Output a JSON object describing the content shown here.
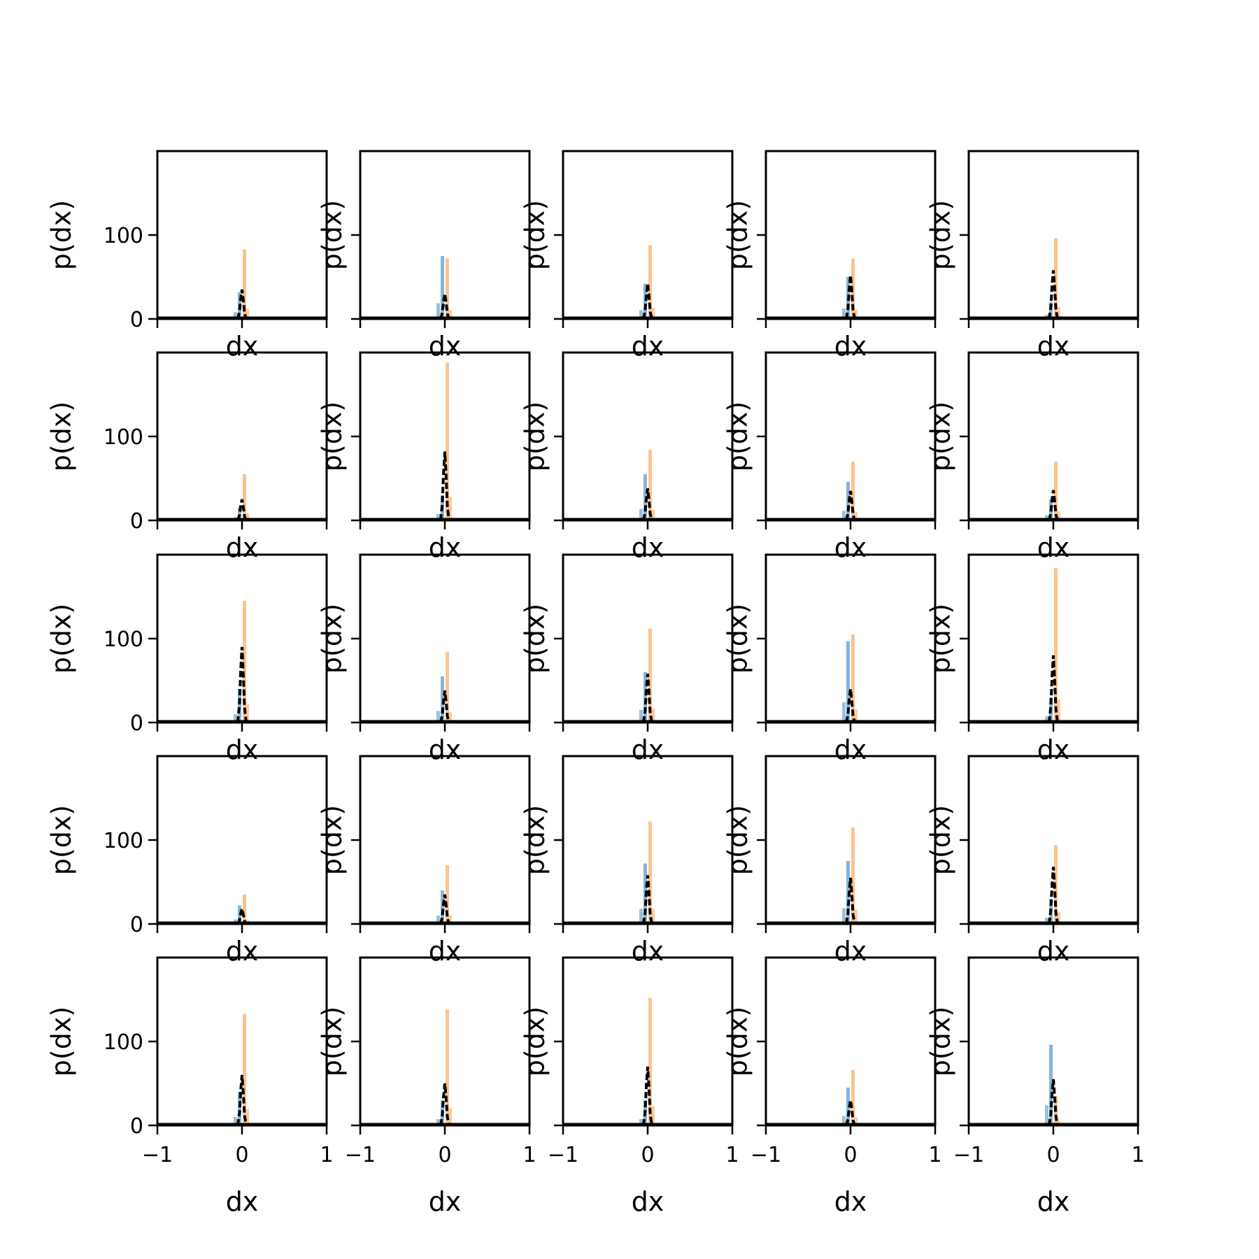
{
  "chart_data": {
    "type": "bar",
    "grid": false,
    "legend": "none",
    "colors": {
      "series_a": "#7fb1d6",
      "series_b": "#ffbf86",
      "series_c": "#000000"
    },
    "rows": 5,
    "cols": 5,
    "xlim": [
      -1,
      1
    ],
    "ylim": [
      0,
      200
    ],
    "x_ticks": [
      -1,
      0,
      1
    ],
    "x_tick_labels": [
      "−1",
      "0",
      "1"
    ],
    "y_ticks": [
      0,
      100
    ],
    "y_tick_labels": [
      "0",
      "100"
    ],
    "xlabel": "dx",
    "ylabel": "p(dx)",
    "panels": [
      {
        "blue_peak": 32,
        "orange_peak": 83,
        "black_peak": 35
      },
      {
        "blue_peak": 75,
        "orange_peak": 72,
        "black_peak": 30
      },
      {
        "blue_peak": 42,
        "orange_peak": 88,
        "black_peak": 42
      },
      {
        "blue_peak": 50,
        "orange_peak": 72,
        "black_peak": 52
      },
      {
        "blue_peak": 20,
        "orange_peak": 96,
        "black_peak": 58
      },
      {
        "blue_peak": 15,
        "orange_peak": 55,
        "black_peak": 25
      },
      {
        "blue_peak": 30,
        "orange_peak": 188,
        "black_peak": 82
      },
      {
        "blue_peak": 55,
        "orange_peak": 84,
        "black_peak": 38
      },
      {
        "blue_peak": 46,
        "orange_peak": 70,
        "black_peak": 35
      },
      {
        "blue_peak": 25,
        "orange_peak": 70,
        "black_peak": 36
      },
      {
        "blue_peak": 40,
        "orange_peak": 145,
        "black_peak": 90
      },
      {
        "blue_peak": 55,
        "orange_peak": 84,
        "black_peak": 38
      },
      {
        "blue_peak": 60,
        "orange_peak": 112,
        "black_peak": 58
      },
      {
        "blue_peak": 97,
        "orange_peak": 105,
        "black_peak": 40
      },
      {
        "blue_peak": 30,
        "orange_peak": 184,
        "black_peak": 80
      },
      {
        "blue_peak": 22,
        "orange_peak": 35,
        "black_peak": 18
      },
      {
        "blue_peak": 40,
        "orange_peak": 70,
        "black_peak": 35
      },
      {
        "blue_peak": 72,
        "orange_peak": 122,
        "black_peak": 58
      },
      {
        "blue_peak": 75,
        "orange_peak": 115,
        "black_peak": 55
      },
      {
        "blue_peak": 30,
        "orange_peak": 94,
        "black_peak": 68
      },
      {
        "blue_peak": 40,
        "orange_peak": 133,
        "black_peak": 60
      },
      {
        "blue_peak": 30,
        "orange_peak": 138,
        "black_peak": 50
      },
      {
        "blue_peak": 30,
        "orange_peak": 152,
        "black_peak": 70
      },
      {
        "blue_peak": 45,
        "orange_peak": 66,
        "black_peak": 30
      },
      {
        "blue_peak": 96,
        "orange_peak": 35,
        "black_peak": 55
      }
    ]
  }
}
